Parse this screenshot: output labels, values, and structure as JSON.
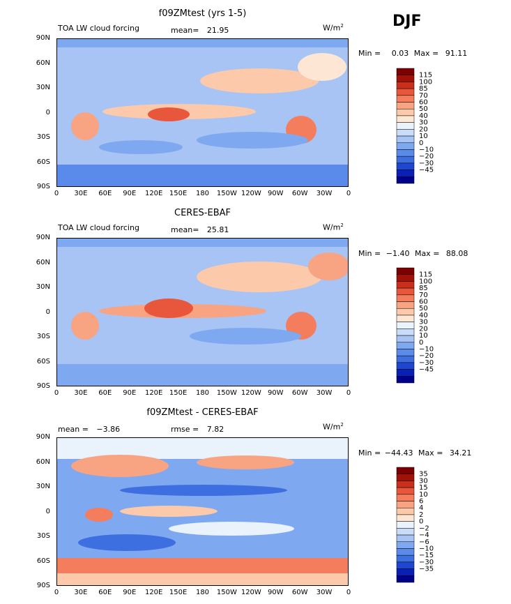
{
  "season": "DJF",
  "units": "W/m",
  "units_sup": "2",
  "lat_ticks": [
    "90N",
    "60N",
    "30N",
    "0",
    "30S",
    "60S",
    "90S"
  ],
  "lon_ticks": [
    "0",
    "30E",
    "60E",
    "90E",
    "120E",
    "150E",
    "180",
    "150W",
    "120W",
    "90W",
    "60W",
    "30W",
    "0"
  ],
  "colors": {
    "panel_a": [
      "#00008b",
      "#0a1fb5",
      "#1e46d0",
      "#3d6fe0",
      "#5b8bea",
      "#7ea8f0",
      "#a7c4f5",
      "#c9dcf8",
      "#eaf2fc",
      "#fde7d4",
      "#fcc9aa",
      "#f8a482",
      "#f37d5c",
      "#e8573b",
      "#c92f1c",
      "#a01208",
      "#7d0000"
    ],
    "panel_diff": [
      "#00008b",
      "#0a1fb5",
      "#1e46d0",
      "#3d6fe0",
      "#5b8bea",
      "#7ea8f0",
      "#a7c4f5",
      "#c9dcf8",
      "#eaf2fc",
      "#fde7d4",
      "#fcc9aa",
      "#f8a482",
      "#f37d5c",
      "#e8573b",
      "#c92f1c",
      "#a01208",
      "#7d0000"
    ]
  },
  "chart_data": [
    {
      "type": "heatmap",
      "title": "f09ZMtest (yrs 1-5)",
      "field": "TOA LW cloud forcing",
      "mean_label": "mean=",
      "mean": "21.95",
      "min_label": "Min =",
      "min": "0.03",
      "max_label": "Max =",
      "max": "91.11",
      "colorbar_levels": [
        "115",
        "100",
        "85",
        "70",
        "60",
        "50",
        "40",
        "30",
        "20",
        "10",
        "0",
        "−10",
        "−20",
        "−30",
        "−45"
      ]
    },
    {
      "type": "heatmap",
      "title": "CERES-EBAF",
      "field": "TOA LW cloud forcing",
      "mean_label": "mean=",
      "mean": "25.81",
      "min_label": "Min =",
      "min": "−1.40",
      "max_label": "Max =",
      "max": "88.08",
      "colorbar_levels": [
        "115",
        "100",
        "85",
        "70",
        "60",
        "50",
        "40",
        "30",
        "20",
        "10",
        "0",
        "−10",
        "−20",
        "−30",
        "−45"
      ]
    },
    {
      "type": "heatmap",
      "title": "f09ZMtest - CERES-EBAF",
      "mean_label": "mean =",
      "mean": "−3.86",
      "rmse_label": "rmse =",
      "rmse": "7.82",
      "min_label": "Min =",
      "min": "−44.43",
      "max_label": "Max =",
      "max": "34.21",
      "colorbar_levels": [
        "35",
        "30",
        "15",
        "10",
        "6",
        "4",
        "2",
        "0",
        "−2",
        "−4",
        "−6",
        "−10",
        "−15",
        "−30",
        "−35"
      ]
    }
  ]
}
